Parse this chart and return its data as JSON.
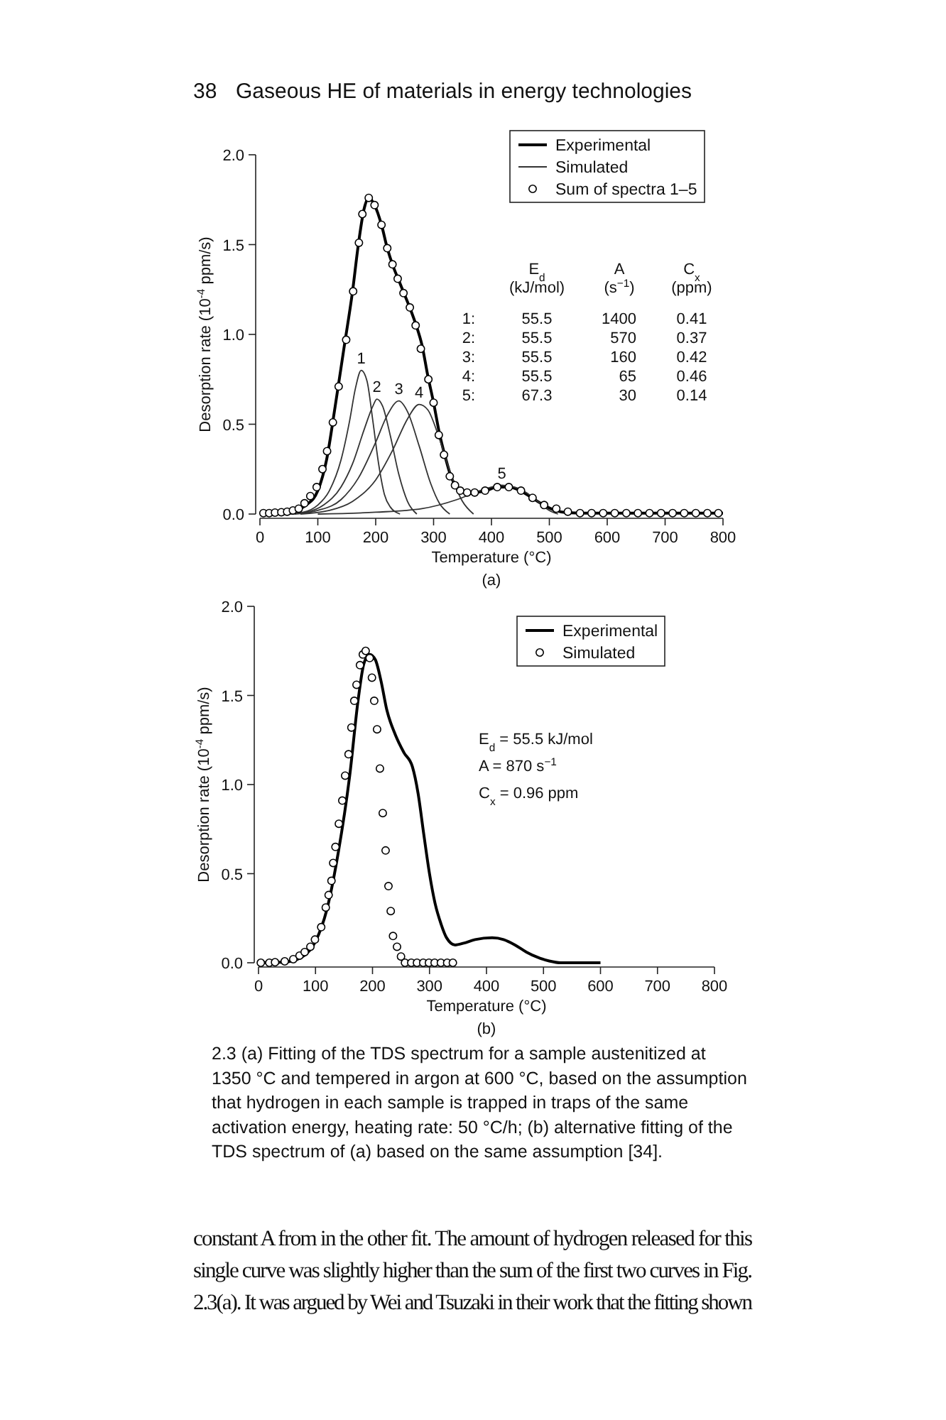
{
  "chart_data": [
    {
      "type": "line",
      "subtitle": "(a)",
      "xlabel": "Temperature (°C)",
      "ylabel": "Desorption rate (10$^{-4}$ ppm/s)",
      "xlim": [
        0,
        800
      ],
      "xticks": [
        0,
        100,
        200,
        300,
        400,
        500,
        600,
        700,
        800
      ],
      "ylim": [
        0,
        2
      ],
      "yticks": [
        {
          "value": 0,
          "label": "0.0"
        },
        {
          "value": 0.5,
          "label": "0.5"
        },
        {
          "value": 1,
          "label": "1.0"
        },
        {
          "value": 1.5,
          "label": "1.5"
        },
        {
          "value": 2,
          "label": "2.0"
        }
      ],
      "grid": false,
      "legend": "top right",
      "series": [
        {
          "name": "Experimental",
          "color": "#000000",
          "x": [
            0,
            30,
            60,
            80,
            100,
            115,
            130,
            145,
            160,
            170,
            180,
            188,
            198,
            210,
            220,
            230,
            240,
            250,
            260,
            270,
            280,
            290,
            300,
            310,
            320,
            330,
            340,
            355,
            370,
            390,
            410,
            430,
            450,
            470,
            490,
            510,
            530,
            560,
            600,
            700,
            800
          ],
          "values": [
            0.005,
            0.01,
            0.02,
            0.05,
            0.13,
            0.3,
            0.6,
            0.92,
            1.24,
            1.5,
            1.7,
            1.76,
            1.72,
            1.61,
            1.48,
            1.38,
            1.3,
            1.22,
            1.14,
            1.05,
            0.94,
            0.77,
            0.62,
            0.45,
            0.32,
            0.21,
            0.15,
            0.12,
            0.12,
            0.13,
            0.15,
            0.15,
            0.13,
            0.09,
            0.05,
            0.02,
            0.008,
            0.005,
            0.005,
            0.005,
            0.005
          ]
        },
        {
          "name": "Simulated",
          "color": "#333333",
          "x": [
            50,
            75,
            100,
            120,
            140,
            155,
            165,
            175,
            185,
            195,
            205,
            215,
            225,
            242
          ],
          "values": [
            0,
            0.01,
            0.05,
            0.13,
            0.3,
            0.52,
            0.7,
            0.8,
            0.74,
            0.52,
            0.28,
            0.11,
            0.04,
            0
          ]
        },
        {
          "color": "#333333",
          "x": [
            50,
            80,
            110,
            140,
            160,
            180,
            195,
            202,
            212,
            225,
            240,
            255,
            271
          ],
          "values": [
            0,
            0.01,
            0.05,
            0.15,
            0.28,
            0.47,
            0.6,
            0.64,
            0.6,
            0.44,
            0.22,
            0.07,
            0
          ]
        },
        {
          "color": "#333333",
          "x": [
            60,
            100,
            140,
            170,
            200,
            220,
            240,
            255,
            275,
            295,
            310,
            328
          ],
          "values": [
            0,
            0.02,
            0.08,
            0.2,
            0.4,
            0.55,
            0.63,
            0.57,
            0.38,
            0.17,
            0.06,
            0
          ]
        },
        {
          "color": "#333333",
          "x": [
            70,
            120,
            160,
            200,
            230,
            255,
            275,
            290,
            310,
            330,
            350,
            369
          ],
          "values": [
            0,
            0.02,
            0.07,
            0.19,
            0.36,
            0.53,
            0.61,
            0.58,
            0.42,
            0.22,
            0.07,
            0
          ]
        },
        {
          "color": "#333333",
          "x": [
            100,
            200,
            280,
            340,
            380,
            418,
            440,
            460,
            480,
            500,
            515
          ],
          "values": [
            0,
            0.01,
            0.03,
            0.08,
            0.13,
            0.16,
            0.15,
            0.12,
            0.07,
            0.02,
            0
          ]
        },
        {
          "name": "Sum of spectra 1–5",
          "type": "scatter",
          "marker": "circle",
          "color": "#000000",
          "x": [
            6,
            16,
            26,
            37,
            47,
            57,
            67,
            77,
            87,
            98,
            108,
            116,
            126,
            136,
            149,
            161,
            171,
            177,
            188,
            198,
            210,
            220,
            229,
            238,
            248,
            259,
            269,
            278,
            291,
            300,
            309,
            318,
            328,
            337,
            346,
            358,
            371,
            389,
            410,
            430,
            451,
            471,
            491,
            512,
            532,
            553,
            573,
            593,
            613,
            633,
            653,
            673,
            693,
            713,
            733,
            753,
            773,
            792
          ],
          "values": [
            0.005,
            0.005,
            0.008,
            0.01,
            0.013,
            0.02,
            0.03,
            0.06,
            0.1,
            0.15,
            0.25,
            0.35,
            0.51,
            0.71,
            0.97,
            1.24,
            1.51,
            1.67,
            1.76,
            1.72,
            1.61,
            1.48,
            1.39,
            1.31,
            1.23,
            1.15,
            1.05,
            0.92,
            0.75,
            0.62,
            0.44,
            0.33,
            0.21,
            0.16,
            0.13,
            0.12,
            0.12,
            0.13,
            0.15,
            0.15,
            0.13,
            0.09,
            0.05,
            0.03,
            0.013,
            0.005,
            0.005,
            0.005,
            0.005,
            0.005,
            0.005,
            0.005,
            0.005,
            0.005,
            0.005,
            0.005,
            0.005,
            0.005
          ]
        }
      ],
      "annotations": [
        "38",
        "Gaseous HE of materials in energy technologies",
        "E$_{d}$",
        "A",
        "C$_{x}$",
        "(kJ/mol)",
        "(s$^{−1}$)",
        "(ppm)",
        "1:",
        "55.5",
        "1400",
        "0.41",
        "2:",
        "55.5",
        "570",
        "0.37",
        "3:",
        "55.5",
        "160",
        "0.42",
        "4:",
        "55.5",
        "65",
        "0.46",
        "5:",
        "67.3",
        "30",
        "0.14",
        {
          "text": "1",
          "x": 175,
          "y": 0.8
        },
        {
          "text": "2",
          "x": 202,
          "y": 0.64
        },
        {
          "text": "3",
          "x": 240,
          "y": 0.63
        },
        {
          "text": "4",
          "x": 275,
          "y": 0.61
        },
        {
          "text": "5",
          "x": 418,
          "y": 0.16
        }
      ]
    },
    {
      "type": "line",
      "subtitle": "(b)",
      "xlabel": "Temperature (°C)",
      "ylabel": "Desorption rate (10$^{-4}$ ppm/s)",
      "xlim": [
        0,
        800
      ],
      "xticks": [
        0,
        100,
        200,
        300,
        400,
        500,
        600,
        700,
        800
      ],
      "ylim": [
        0,
        2
      ],
      "yticks": [
        {
          "value": 0,
          "label": "0.0"
        },
        {
          "value": 0.5,
          "label": "0.5"
        },
        {
          "value": 1,
          "label": "1.0"
        },
        {
          "value": 1.5,
          "label": "1.5"
        },
        {
          "value": 2,
          "label": "2.0"
        }
      ],
      "grid": false,
      "legend": "top right",
      "series": [
        {
          "name": "Experimental",
          "color": "#000000",
          "x": [
            0,
            50,
            80,
            100,
            120,
            140,
            160,
            175,
            185,
            195,
            205,
            215,
            225,
            240,
            255,
            270,
            280,
            290,
            300,
            310,
            320,
            330,
            345,
            360,
            380,
            410,
            430,
            450,
            470,
            490,
            510,
            530,
            600
          ],
          "values": [
            0,
            0.005,
            0.04,
            0.12,
            0.3,
            0.62,
            1.05,
            1.48,
            1.68,
            1.73,
            1.7,
            1.58,
            1.42,
            1.28,
            1.18,
            1.1,
            0.95,
            0.72,
            0.5,
            0.33,
            0.22,
            0.14,
            0.1,
            0.11,
            0.13,
            0.14,
            0.13,
            0.1,
            0.06,
            0.03,
            0.01,
            0,
            0
          ]
        },
        {
          "name": "Simulated",
          "type": "scatter",
          "marker": "circle",
          "color": "#000000",
          "x": [
            4,
            19,
            29,
            46,
            61,
            72,
            81,
            91,
            99,
            110,
            118,
            123,
            128,
            131,
            135,
            141,
            147,
            152,
            158,
            163,
            168,
            172,
            178,
            183,
            188,
            195,
            199,
            203,
            208,
            213,
            218,
            223,
            228,
            232,
            236,
            243,
            250,
            257,
            268,
            278,
            289,
            299,
            309,
            320,
            331,
            341
          ],
          "values": [
            0,
            0,
            0.003,
            0.008,
            0.02,
            0.04,
            0.06,
            0.09,
            0.13,
            0.2,
            0.31,
            0.38,
            0.46,
            0.56,
            0.65,
            0.78,
            0.91,
            1.05,
            1.17,
            1.32,
            1.47,
            1.56,
            1.67,
            1.73,
            1.75,
            1.71,
            1.6,
            1.47,
            1.31,
            1.09,
            0.84,
            0.63,
            0.43,
            0.29,
            0.15,
            0.09,
            0.035,
            0,
            0,
            0,
            0,
            0,
            0,
            0,
            0,
            0
          ]
        }
      ],
      "annotations": [
        "E$_{d}$ = 55.5 kJ/mol",
        "A = 870 s$^{−1}$",
        "C$_{x}$ = 0.96 ppm",
        "2.3 (a) Fitting of the TDS spectrum for a sample austenitized at",
        "1350 °C and tempered in argon at 600 °C, based on the assumption",
        "that hydrogen in each sample is trapped in traps of the same",
        "activation energy, heating rate: 50 °C/h; (b) alternative fitting of the",
        "TDS spectrum of (a) based on the same assumption [34].",
        "constant A from in the other fit. The amount of hydrogen released for this",
        "single curve was slightly higher than the sum of the first two curves in Fig.",
        "2.3(a). It was argued by Wei and Tsuzaki in their work that the fitting shown"
      ]
    }
  ]
}
